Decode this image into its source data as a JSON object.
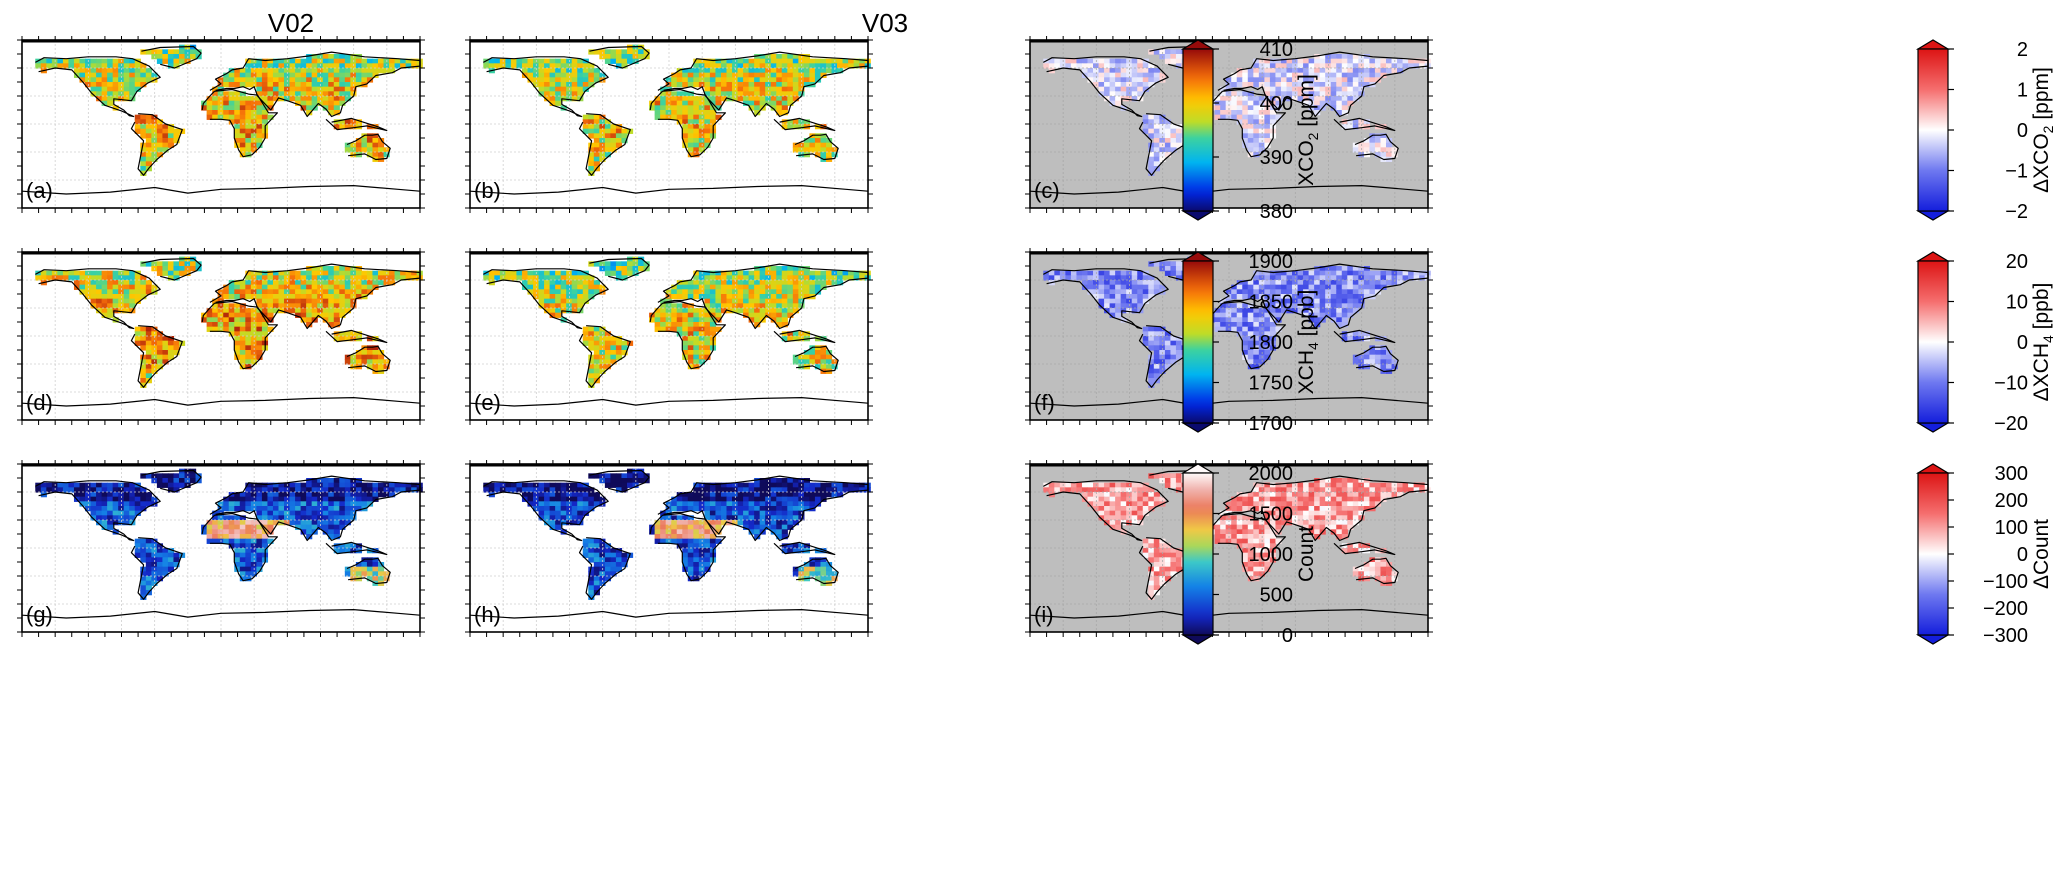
{
  "figure": {
    "columns": [
      {
        "title": "V02"
      },
      {
        "title": "V03"
      },
      {
        "title": ""
      }
    ],
    "rows": [
      {
        "colorbar_left": {
          "label": "XCO",
          "sub": "2",
          "unit": " [ppm]",
          "ticks": [
            "410",
            "400",
            "390",
            "380"
          ],
          "colormap": "jet"
        },
        "colorbar_right": {
          "label": "ΔXCO",
          "sub": "2",
          "unit": " [ppm]",
          "ticks": [
            "2",
            "1",
            "0",
            "−1",
            "−2"
          ],
          "colormap": "bwr"
        }
      },
      {
        "colorbar_left": {
          "label": "XCH",
          "sub": "4",
          "unit": " [ppb]",
          "ticks": [
            "1900",
            "1850",
            "1800",
            "1750",
            "1700"
          ],
          "colormap": "jet"
        },
        "colorbar_right": {
          "label": "ΔXCH",
          "sub": "4",
          "unit": " [ppb]",
          "ticks": [
            "20",
            "10",
            "0",
            "−10",
            "−20"
          ],
          "colormap": "bwr"
        }
      },
      {
        "colorbar_left": {
          "label": "Count",
          "sub": "",
          "unit": "",
          "ticks": [
            "2000",
            "1500",
            "1000",
            "500",
            "0"
          ],
          "colormap": "count"
        },
        "colorbar_right": {
          "label": "ΔCount",
          "sub": "",
          "unit": "",
          "ticks": [
            "300",
            "200",
            "100",
            "0",
            "−100",
            "−200",
            "−300"
          ],
          "colormap": "bwr"
        }
      }
    ],
    "panels": [
      {
        "label": "(a)",
        "field": "XCO2",
        "version": "V02",
        "style": "jet",
        "background": "#ffffff",
        "level": 0.62
      },
      {
        "label": "(b)",
        "field": "XCO2",
        "version": "V03",
        "style": "jet",
        "background": "#ffffff",
        "level": 0.6
      },
      {
        "label": "(c)",
        "field": "ΔXCO2",
        "style": "diff",
        "background": "#bebebe",
        "level": 0.45
      },
      {
        "label": "(d)",
        "field": "XCH4",
        "version": "V02",
        "style": "jet",
        "background": "#ffffff",
        "level": 0.66
      },
      {
        "label": "(e)",
        "field": "XCH4",
        "version": "V03",
        "style": "jet",
        "background": "#ffffff",
        "level": 0.58
      },
      {
        "label": "(f)",
        "field": "ΔXCH4",
        "style": "diff",
        "background": "#bebebe",
        "level": 0.28
      },
      {
        "label": "(g)",
        "field": "Count",
        "version": "V02",
        "style": "count",
        "background": "#ffffff",
        "level": 0.22
      },
      {
        "label": "(h)",
        "field": "Count",
        "version": "V03",
        "style": "count",
        "background": "#ffffff",
        "level": 0.2
      },
      {
        "label": "(i)",
        "field": "ΔCount",
        "style": "diff",
        "background": "#bebebe",
        "level": 0.66
      }
    ],
    "colors": {
      "ocean": "#ffffff",
      "diff_background": "#bebebe",
      "coastline": "#000000"
    }
  },
  "chart_data": {
    "type": "heatmap",
    "description_of_fields": [
      "XCO2 [ppm]",
      "XCH4 [ppb]",
      "Count"
    ],
    "colorbars": [
      {
        "name": "XCO2",
        "range": [
          380,
          410
        ],
        "ticks": [
          380,
          390,
          400,
          410
        ]
      },
      {
        "name": "ΔXCO2",
        "range": [
          -2,
          2
        ],
        "ticks": [
          -2,
          -1,
          0,
          1,
          2
        ]
      },
      {
        "name": "XCH4",
        "range": [
          1700,
          1900
        ],
        "ticks": [
          1700,
          1750,
          1800,
          1850,
          1900
        ]
      },
      {
        "name": "ΔXCH4",
        "range": [
          -20,
          20
        ],
        "ticks": [
          -20,
          -10,
          0,
          10,
          20
        ]
      },
      {
        "name": "Count",
        "range": [
          0,
          2000
        ],
        "ticks": [
          0,
          500,
          1000,
          1500,
          2000
        ]
      },
      {
        "name": "ΔCount",
        "range": [
          -300,
          300
        ],
        "ticks": [
          -300,
          -200,
          -100,
          0,
          100,
          200,
          300
        ]
      }
    ],
    "grid": true
  }
}
